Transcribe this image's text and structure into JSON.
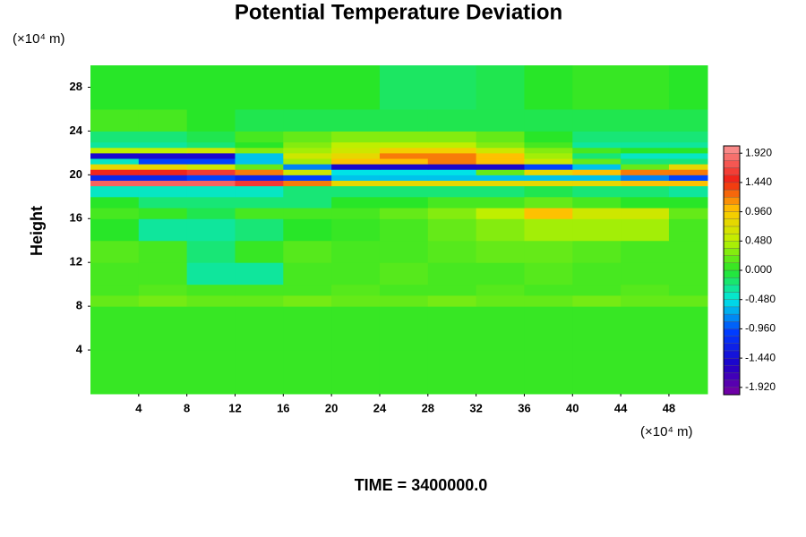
{
  "chart_data": {
    "type": "heatmap",
    "title": "Potential Temperature Deviation",
    "x_unit": "(×10⁴ m)",
    "y_unit": "(×10⁴ m)",
    "ylabel": "Height",
    "footer": "TIME = 3400000.0",
    "xlim": [
      0,
      51.2
    ],
    "ylim": [
      0,
      30
    ],
    "xticks": [
      4,
      8,
      12,
      16,
      20,
      24,
      28,
      32,
      36,
      40,
      44,
      48
    ],
    "yticks": [
      4,
      8,
      12,
      16,
      20,
      24,
      28
    ],
    "x_edges": [
      0,
      4,
      8,
      12,
      16,
      20,
      24,
      28,
      32,
      36,
      40,
      44,
      48,
      51.2
    ],
    "y_edges": [
      0,
      4,
      8,
      9,
      10,
      12,
      14,
      16,
      17,
      18,
      19,
      19.5,
      20,
      20.5,
      21,
      21.5,
      22,
      22.5,
      23,
      24,
      26,
      30
    ],
    "z": [
      [
        0.05,
        0.05,
        0.05,
        0.05,
        0.05,
        0.05,
        0.05,
        0.05,
        0.05,
        0.05,
        0.05,
        0.05,
        0.05
      ],
      [
        0.05,
        0.05,
        0.05,
        0.05,
        0.05,
        0.05,
        0.05,
        0.05,
        0.05,
        0.05,
        0.05,
        0.05,
        0.05
      ],
      [
        0.2,
        0.25,
        0.2,
        0.2,
        0.25,
        0.2,
        0.2,
        0.25,
        0.2,
        0.2,
        0.25,
        0.2,
        0.2
      ],
      [
        0.1,
        0.15,
        0.1,
        0.1,
        0.1,
        0.15,
        0.1,
        0.1,
        0.15,
        0.1,
        0.1,
        0.15,
        0.1
      ],
      [
        0.1,
        0.1,
        -0.3,
        -0.3,
        0.1,
        0.1,
        0.15,
        0.1,
        0.1,
        0.15,
        0.1,
        0.1,
        0.1
      ],
      [
        0.15,
        0.1,
        -0.2,
        0.05,
        0.15,
        0.1,
        0.1,
        0.15,
        0.2,
        0.2,
        0.15,
        0.1,
        0.1
      ],
      [
        0,
        -0.3,
        -0.3,
        -0.2,
        0,
        0.05,
        0.1,
        0.2,
        0.3,
        0.4,
        0.4,
        0.4,
        0.1
      ],
      [
        0.1,
        0.05,
        -0.1,
        0.1,
        0.1,
        0.1,
        0.2,
        0.3,
        0.5,
        1.0,
        0.6,
        0.6,
        0.2
      ],
      [
        0,
        -0.2,
        -0.2,
        -0.2,
        -0.2,
        0,
        0,
        0.1,
        0.1,
        0.2,
        0.1,
        0,
        0
      ],
      [
        -0.4,
        -0.4,
        -0.4,
        -0.4,
        -0.2,
        -0.2,
        -0.2,
        -0.2,
        -0.2,
        -0.1,
        -0.2,
        -0.2,
        -0.3
      ],
      [
        1.8,
        1.8,
        1.8,
        1.6,
        1.2,
        0.8,
        0.8,
        0.8,
        0.8,
        0.8,
        0.8,
        1.0,
        1.0
      ],
      [
        -1.2,
        -1.2,
        -1.0,
        -1.2,
        -1.0,
        -0.6,
        -0.6,
        -0.6,
        -0.6,
        -0.6,
        -0.6,
        -0.8,
        -1.0
      ],
      [
        1.5,
        1.5,
        1.6,
        1.2,
        0.6,
        -0.5,
        -0.5,
        -0.5,
        0.2,
        0.8,
        1.0,
        1.2,
        1.2
      ],
      [
        0.8,
        0.8,
        0.6,
        0.2,
        -0.8,
        -1.5,
        -1.5,
        -1.5,
        -1.5,
        -1.0,
        -0.6,
        0.2,
        0.8
      ],
      [
        -0.4,
        -1.0,
        -1.0,
        -0.6,
        0.4,
        1.0,
        1.0,
        1.2,
        1.0,
        0.6,
        0.2,
        -0.2,
        -0.2
      ],
      [
        -1.5,
        -1.5,
        -1.5,
        -0.6,
        0.6,
        0.8,
        1.2,
        1.2,
        1.0,
        0.4,
        -0.2,
        -0.4,
        -0.4
      ],
      [
        0.5,
        0.5,
        0.6,
        0.3,
        0.4,
        0.6,
        0.9,
        0.9,
        0.6,
        0.3,
        0.1,
        0,
        0
      ],
      [
        -0.3,
        -0.3,
        -0.2,
        0,
        0.3,
        0.5,
        0.5,
        0.5,
        0.3,
        0.1,
        -0.3,
        -0.3,
        -0.3
      ],
      [
        -0.2,
        -0.2,
        -0.1,
        0.1,
        0.2,
        0.3,
        0.3,
        0.3,
        0.2,
        0,
        -0.2,
        -0.2,
        -0.2
      ],
      [
        0.1,
        0.1,
        0,
        -0.1,
        -0.1,
        -0.1,
        -0.1,
        -0.1,
        -0.1,
        -0.1,
        -0.1,
        -0.1,
        -0.1
      ],
      [
        0,
        0,
        0,
        0,
        0,
        0,
        -0.15,
        -0.15,
        -0.1,
        0,
        0.05,
        0.05,
        0
      ]
    ],
    "clim": [
      -2.04,
      2.04
    ],
    "cticks": [
      {
        "value": 1.92,
        "label": "1.920"
      },
      {
        "value": 1.44,
        "label": "1.440"
      },
      {
        "value": 0.96,
        "label": "0.960"
      },
      {
        "value": 0.48,
        "label": "0.480"
      },
      {
        "value": 0,
        "label": "0.000"
      },
      {
        "value": -0.48,
        "label": "-0.480"
      },
      {
        "value": -0.96,
        "label": "-0.960"
      },
      {
        "value": -1.44,
        "label": "-1.440"
      },
      {
        "value": -1.92,
        "label": "-1.920"
      }
    ]
  }
}
